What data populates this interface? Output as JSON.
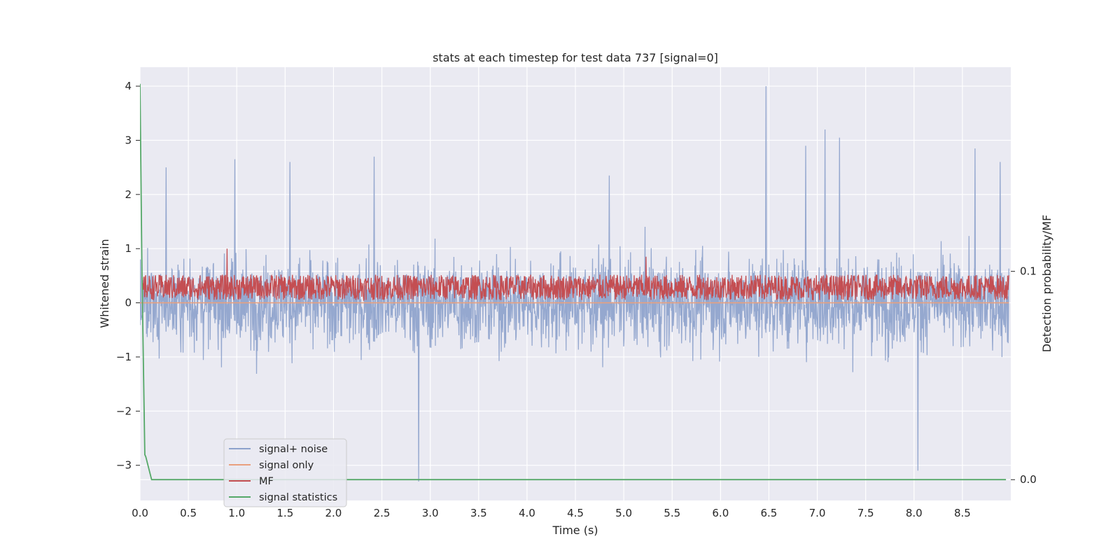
{
  "chart_data": {
    "type": "line",
    "title": "stats at each timestep for test data 737 [signal=0]",
    "xlabel": "Time (s)",
    "ylabel": "Whitened strain",
    "y2label": "Detection probability/MF",
    "xlim": [
      0.0,
      9.0
    ],
    "ylim": [
      -3.65,
      4.35
    ],
    "y2lim": [
      -0.01,
      0.198
    ],
    "xticks": [
      "0.0",
      "0.5",
      "1.0",
      "1.5",
      "2.0",
      "2.5",
      "3.0",
      "3.5",
      "4.0",
      "4.5",
      "5.0",
      "5.5",
      "6.0",
      "6.5",
      "7.0",
      "7.5",
      "8.0",
      "8.5"
    ],
    "yticks": [
      "4",
      "3",
      "2",
      "1",
      "0",
      "−1",
      "−2",
      "−3"
    ],
    "y2ticks": [
      "0.1",
      "0.0"
    ],
    "legend_position": "lower-left",
    "grid": true,
    "colors": {
      "plot_bg": "#eaeaf2",
      "grid": "#ffffff",
      "signal_noise": "#8da2cc",
      "signal_only": "#e9a07e",
      "mf": "#c44e52",
      "signal_statistics": "#55a868"
    },
    "series": [
      {
        "name": "signal+ noise",
        "axis": "left",
        "description_envelope": {
          "dense_band": [
            -1.2,
            1.1
          ],
          "peaks": [
            {
              "x": 0.27,
              "y": 2.5
            },
            {
              "x": 0.98,
              "y": 2.65
            },
            {
              "x": 1.55,
              "y": 2.6
            },
            {
              "x": 2.42,
              "y": 2.7
            },
            {
              "x": 2.88,
              "y": -3.3
            },
            {
              "x": 4.85,
              "y": 2.35
            },
            {
              "x": 6.47,
              "y": 4.0
            },
            {
              "x": 6.88,
              "y": 2.9
            },
            {
              "x": 7.08,
              "y": 3.2
            },
            {
              "x": 7.23,
              "y": 3.05
            },
            {
              "x": 8.04,
              "y": -3.1
            },
            {
              "x": 8.63,
              "y": 2.85
            },
            {
              "x": 8.89,
              "y": 2.6
            }
          ]
        }
      },
      {
        "name": "signal only",
        "axis": "left",
        "constant_value": 0.0
      },
      {
        "name": "MF",
        "axis": "left",
        "band": [
          0.05,
          0.52
        ],
        "peaks": [
          {
            "x": 0.9,
            "y": 1.0
          },
          {
            "x": 5.23,
            "y": 0.85
          }
        ]
      },
      {
        "name": "signal statistics",
        "axis": "right",
        "x": [
          0.0,
          0.02,
          0.05,
          0.06,
          0.12,
          8.95
        ],
        "y": [
          0.19,
          0.1,
          0.012,
          0.011,
          0.0,
          0.0
        ]
      }
    ]
  }
}
